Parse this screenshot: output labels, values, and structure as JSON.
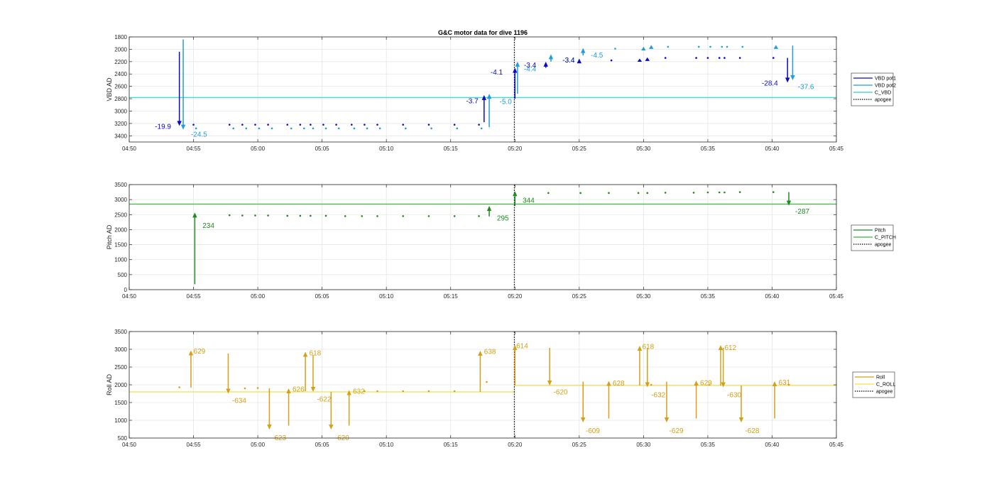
{
  "figure_title": "G&C motor data for dive 1196",
  "chart_data": [
    {
      "id": "vbd",
      "type": "line",
      "ylabel": "VBD AD",
      "y_reversed": true,
      "ylim": [
        1800,
        3500
      ],
      "yticks": [
        1800,
        2000,
        2200,
        2400,
        2600,
        2800,
        3000,
        3200,
        3400
      ],
      "xlim": [
        290,
        345
      ],
      "xticks": [
        290,
        295,
        300,
        305,
        310,
        315,
        320,
        325,
        330,
        335,
        340,
        345
      ],
      "xticklabels": [
        "04:50",
        "04:55",
        "05:00",
        "05:05",
        "05:10",
        "05:15",
        "05:20",
        "05:25",
        "05:30",
        "05:35",
        "05:40",
        "05:45"
      ],
      "grid": true,
      "legend": {
        "placement": "right",
        "entries": [
          {
            "label": "VBD pot1",
            "color": "#0a0ac8",
            "style": "solid"
          },
          {
            "label": "VBD pot2",
            "color": "#1f9de0",
            "style": "solid"
          },
          {
            "label": "C_VBD",
            "color": "#33cccc",
            "style": "solid"
          },
          {
            "label": "apogee",
            "color": "#000000",
            "style": "dotted"
          }
        ]
      },
      "reference_line": {
        "name": "C_VBD",
        "value": 2780,
        "color": "#33cccc"
      },
      "apogee_x": 319.95,
      "series": [
        {
          "name": "VBD pot1",
          "color": "#0a0ac8",
          "x": [
            295.0,
            297.8,
            298.8,
            299.8,
            300.8,
            302.3,
            303.3,
            304.1,
            305.1,
            306.1,
            307.3,
            308.3,
            309.3,
            311.3,
            313.3,
            315.3,
            317.2,
            327.5,
            331.7,
            334.1,
            335.0,
            335.9,
            336.3,
            337.5,
            340.1
          ],
          "y": [
            3220,
            3220,
            3220,
            3220,
            3220,
            3220,
            3220,
            3220,
            3220,
            3220,
            3220,
            3220,
            3220,
            3220,
            3220,
            3220,
            3220,
            2180,
            2140,
            2140,
            2140,
            2140,
            2140,
            2140,
            2140
          ]
        },
        {
          "name": "VBD pot2",
          "color": "#1f9de0",
          "x": [
            295.2,
            298.1,
            299.1,
            300.1,
            301.1,
            302.6,
            303.6,
            304.3,
            305.3,
            306.3,
            307.5,
            308.5,
            309.5,
            311.5,
            313.5,
            315.5,
            317.4,
            327.8,
            331.9,
            334.3,
            335.2,
            336.1,
            336.5,
            337.7
          ],
          "y": [
            3280,
            3280,
            3280,
            3280,
            3280,
            3280,
            3280,
            3280,
            3280,
            3280,
            3280,
            3280,
            3280,
            3280,
            3280,
            3280,
            3280,
            1990,
            1960,
            1960,
            1960,
            1960,
            1960,
            1960
          ]
        }
      ],
      "arrows": [
        {
          "x": 293.9,
          "y0": 2040,
          "y1": 3240,
          "color": "#0a0ac8",
          "label": "-19.9",
          "label_x": 292.0,
          "label_y": 3240
        },
        {
          "x": 294.2,
          "y0": 1840,
          "y1": 3300,
          "color": "#1f9de0",
          "label": "-24.5",
          "label_x": 294.8,
          "label_y": 3370
        },
        {
          "x": 317.6,
          "y0": 3180,
          "y1": 2740,
          "color": "#0a0ac8",
          "label": "-3.7",
          "label_x": 316.2,
          "label_y": 2830
        },
        {
          "x": 318.0,
          "y0": 3260,
          "y1": 2720,
          "color": "#1f9de0",
          "label": "-5.0",
          "label_x": 318.8,
          "label_y": 2840
        },
        {
          "x": 320.0,
          "y0": 2800,
          "y1": 2300,
          "color": "#0a0ac8",
          "label": "-4.1",
          "label_x": 318.1,
          "label_y": 2360
        },
        {
          "x": 320.2,
          "y0": 2720,
          "y1": 2200,
          "color": "#1f9de0",
          "label": "-4.4",
          "label_x": 320.7,
          "label_y": 2310
        },
        {
          "x": 322.4,
          "y0": 2300,
          "y1": 2200,
          "color": "#0a0ac8",
          "label": "-3.4",
          "label_x": 320.7,
          "label_y": 2250
        },
        {
          "x": 322.8,
          "y0": 2200,
          "y1": 2080,
          "color": "#1f9de0",
          "label": "-3.4",
          "label_x": 323.7,
          "label_y": 2170
        },
        {
          "x": 325.0,
          "y0": 2220,
          "y1": 2150,
          "color": "#0a0ac8",
          "label": "-3.4",
          "label_x": 323.7,
          "label_y": 2170
        },
        {
          "x": 325.3,
          "y0": 2100,
          "y1": 1980,
          "color": "#1f9de0",
          "label": "-4.5",
          "label_x": 325.9,
          "label_y": 2090
        },
        {
          "x": 329.7,
          "y0": 2180,
          "y1": 2150,
          "color": "#0a0ac8",
          "label": "",
          "label_x": 0,
          "label_y": 0
        },
        {
          "x": 330.0,
          "y0": 2000,
          "y1": 1960,
          "color": "#1f9de0",
          "label": "",
          "label_x": 0,
          "label_y": 0
        },
        {
          "x": 330.3,
          "y0": 2170,
          "y1": 2130,
          "color": "#0a0ac8",
          "label": "",
          "label_x": 0,
          "label_y": 0
        },
        {
          "x": 330.6,
          "y0": 1980,
          "y1": 1930,
          "color": "#1f9de0",
          "label": "",
          "label_x": 0,
          "label_y": 0
        },
        {
          "x": 340.3,
          "y0": 1980,
          "y1": 1930,
          "color": "#1f9de0",
          "label": "",
          "label_x": 0,
          "label_y": 0
        },
        {
          "x": 341.2,
          "y0": 2140,
          "y1": 2540,
          "color": "#0a0ac8",
          "label": "-28.4",
          "label_x": 339.2,
          "label_y": 2540
        },
        {
          "x": 341.6,
          "y0": 1940,
          "y1": 2500,
          "color": "#1f9de0",
          "label": "-37.6",
          "label_x": 342.0,
          "label_y": 2600
        }
      ]
    },
    {
      "id": "pitch",
      "type": "line",
      "ylabel": "Pitch AD",
      "y_reversed": false,
      "ylim": [
        0,
        3500
      ],
      "yticks": [
        0,
        500,
        1000,
        1500,
        2000,
        2500,
        3000,
        3500
      ],
      "xlim": [
        290,
        345
      ],
      "xticks": [
        290,
        295,
        300,
        305,
        310,
        315,
        320,
        325,
        330,
        335,
        340,
        345
      ],
      "xticklabels": [
        "04:50",
        "04:55",
        "05:00",
        "05:05",
        "05:10",
        "05:15",
        "05:20",
        "05:25",
        "05:30",
        "05:35",
        "05:40",
        "05:45"
      ],
      "grid": true,
      "legend": {
        "placement": "right",
        "entries": [
          {
            "label": "Pitch",
            "color": "#1f8a1f",
            "style": "solid"
          },
          {
            "label": "C_PITCH",
            "color": "#2fbf2f",
            "style": "solid"
          },
          {
            "label": "apogee",
            "color": "#000000",
            "style": "dotted"
          }
        ]
      },
      "reference_line": {
        "name": "C_PITCH",
        "value": 2850,
        "color": "#2fbf2f"
      },
      "apogee_x": 319.95,
      "series": [
        {
          "name": "Pitch",
          "color": "#1f8a1f",
          "x": [
            297.8,
            298.8,
            299.8,
            300.8,
            302.3,
            303.3,
            304.1,
            305.3,
            306.8,
            308.1,
            309.3,
            311.3,
            313.3,
            315.3,
            317.2,
            322.6,
            325.1,
            327.3,
            329.6,
            330.3,
            331.7,
            333.9,
            335.0,
            335.9,
            336.3,
            337.5,
            340.1
          ],
          "y": [
            2480,
            2470,
            2470,
            2470,
            2460,
            2460,
            2460,
            2460,
            2450,
            2450,
            2450,
            2450,
            2450,
            2450,
            2450,
            3220,
            3220,
            3220,
            3220,
            3220,
            3230,
            3230,
            3240,
            3240,
            3240,
            3250,
            3250
          ]
        }
      ],
      "arrows": [
        {
          "x": 295.1,
          "y0": 180,
          "y1": 2570,
          "color": "#1f8a1f",
          "label": "234",
          "label_x": 295.7,
          "label_y": 2150
        },
        {
          "x": 318.0,
          "y0": 2440,
          "y1": 2790,
          "color": "#1f8a1f",
          "label": "295",
          "label_x": 318.6,
          "label_y": 2400
        },
        {
          "x": 320.0,
          "y0": 2790,
          "y1": 3280,
          "color": "#1f8a1f",
          "label": "344",
          "label_x": 320.6,
          "label_y": 2990
        },
        {
          "x": 341.3,
          "y0": 3250,
          "y1": 2800,
          "color": "#1f8a1f",
          "label": "-287",
          "label_x": 341.8,
          "label_y": 2620
        }
      ]
    },
    {
      "id": "roll",
      "type": "line",
      "ylabel": "Roll AD",
      "y_reversed": false,
      "ylim": [
        500,
        3500
      ],
      "yticks": [
        500,
        1000,
        1500,
        2000,
        2500,
        3000,
        3500
      ],
      "xlim": [
        290,
        345
      ],
      "xticks": [
        290,
        295,
        300,
        305,
        310,
        315,
        320,
        325,
        330,
        335,
        340,
        345
      ],
      "xticklabels": [
        "04:50",
        "04:55",
        "05:00",
        "05:05",
        "05:10",
        "05:15",
        "05:20",
        "05:25",
        "05:30",
        "05:35",
        "05:40",
        "05:45"
      ],
      "grid": true,
      "legend": {
        "placement": "right",
        "entries": [
          {
            "label": "Roll",
            "color": "#d4a017",
            "style": "solid"
          },
          {
            "label": "C_ROLL",
            "color": "#f2e24a",
            "style": "solid"
          },
          {
            "label": "apogee",
            "color": "#000000",
            "style": "dotted"
          }
        ]
      },
      "reference_segments": [
        {
          "x0": 290,
          "x1": 320,
          "value": 1800,
          "color": "#f2e24a"
        },
        {
          "x0": 320,
          "x1": 345,
          "value": 1980,
          "color": "#f2e24a"
        }
      ],
      "apogee_x": 319.95,
      "series": [
        {
          "name": "Roll",
          "color": "#d4a017",
          "x": [
            293.9,
            299.0,
            300.0,
            308.3,
            309.3,
            311.3,
            313.3,
            315.3,
            317.8,
            330.6,
            335.1,
            341.3
          ],
          "y": [
            1930,
            1900,
            1910,
            1820,
            1820,
            1820,
            1820,
            1820,
            2080,
            2000,
            2000,
            2000
          ]
        }
      ],
      "arrows": [
        {
          "x": 294.8,
          "y0": 1920,
          "y1": 2970,
          "color": "#d4a017",
          "label": "629",
          "label_x": 295.0,
          "label_y": 2960
        },
        {
          "x": 297.7,
          "y0": 2880,
          "y1": 1750,
          "color": "#d4a017",
          "label": "-634",
          "label_x": 298.0,
          "label_y": 1570
        },
        {
          "x": 300.9,
          "y0": 1900,
          "y1": 740,
          "color": "#d4a017",
          "label": "-623",
          "label_x": 301.1,
          "label_y": 520
        },
        {
          "x": 302.4,
          "y0": 850,
          "y1": 1900,
          "color": "#d4a017",
          "label": "626",
          "label_x": 302.7,
          "label_y": 1890
        },
        {
          "x": 303.7,
          "y0": 1820,
          "y1": 2930,
          "color": "#d4a017",
          "label": "618",
          "label_x": 304.0,
          "label_y": 2910
        },
        {
          "x": 304.3,
          "y0": 2840,
          "y1": 1800,
          "color": "#d4a017",
          "label": "-622",
          "label_x": 304.6,
          "label_y": 1610
        },
        {
          "x": 305.7,
          "y0": 1800,
          "y1": 740,
          "color": "#d4a017",
          "label": "-620",
          "label_x": 306.0,
          "label_y": 520
        },
        {
          "x": 307.1,
          "y0": 850,
          "y1": 1850,
          "color": "#d4a017",
          "label": "632",
          "label_x": 307.4,
          "label_y": 1830
        },
        {
          "x": 317.3,
          "y0": 1800,
          "y1": 2960,
          "color": "#d4a017",
          "label": "638",
          "label_x": 317.6,
          "label_y": 2950
        },
        {
          "x": 320.0,
          "y0": 1980,
          "y1": 3120,
          "color": "#d4a017",
          "label": "614",
          "label_x": 320.1,
          "label_y": 3110
        },
        {
          "x": 322.7,
          "y0": 3040,
          "y1": 1980,
          "color": "#d4a017",
          "label": "-620",
          "label_x": 323.0,
          "label_y": 1810
        },
        {
          "x": 325.3,
          "y0": 2090,
          "y1": 940,
          "color": "#d4a017",
          "label": "-609",
          "label_x": 325.5,
          "label_y": 720
        },
        {
          "x": 327.3,
          "y0": 1050,
          "y1": 2110,
          "color": "#d4a017",
          "label": "628",
          "label_x": 327.6,
          "label_y": 2060
        },
        {
          "x": 329.7,
          "y0": 1980,
          "y1": 3100,
          "color": "#d4a017",
          "label": "618",
          "label_x": 329.9,
          "label_y": 3090
        },
        {
          "x": 330.3,
          "y0": 3040,
          "y1": 1930,
          "color": "#d4a017",
          "label": "-632",
          "label_x": 330.6,
          "label_y": 1730
        },
        {
          "x": 331.8,
          "y0": 2090,
          "y1": 940,
          "color": "#d4a017",
          "label": "-629",
          "label_x": 332.0,
          "label_y": 720
        },
        {
          "x": 334.1,
          "y0": 1050,
          "y1": 2120,
          "color": "#d4a017",
          "label": "629",
          "label_x": 334.4,
          "label_y": 2070
        },
        {
          "x": 336.0,
          "y0": 1980,
          "y1": 3120,
          "color": "#d4a017",
          "label": "612",
          "label_x": 336.3,
          "label_y": 3060
        },
        {
          "x": 336.2,
          "y0": 3040,
          "y1": 1930,
          "color": "#d4a017",
          "label": "-630",
          "label_x": 336.5,
          "label_y": 1730
        },
        {
          "x": 337.6,
          "y0": 1980,
          "y1": 940,
          "color": "#d4a017",
          "label": "-628",
          "label_x": 337.9,
          "label_y": 720
        },
        {
          "x": 340.2,
          "y0": 1050,
          "y1": 2100,
          "color": "#d4a017",
          "label": "631",
          "label_x": 340.5,
          "label_y": 2080
        }
      ]
    }
  ]
}
